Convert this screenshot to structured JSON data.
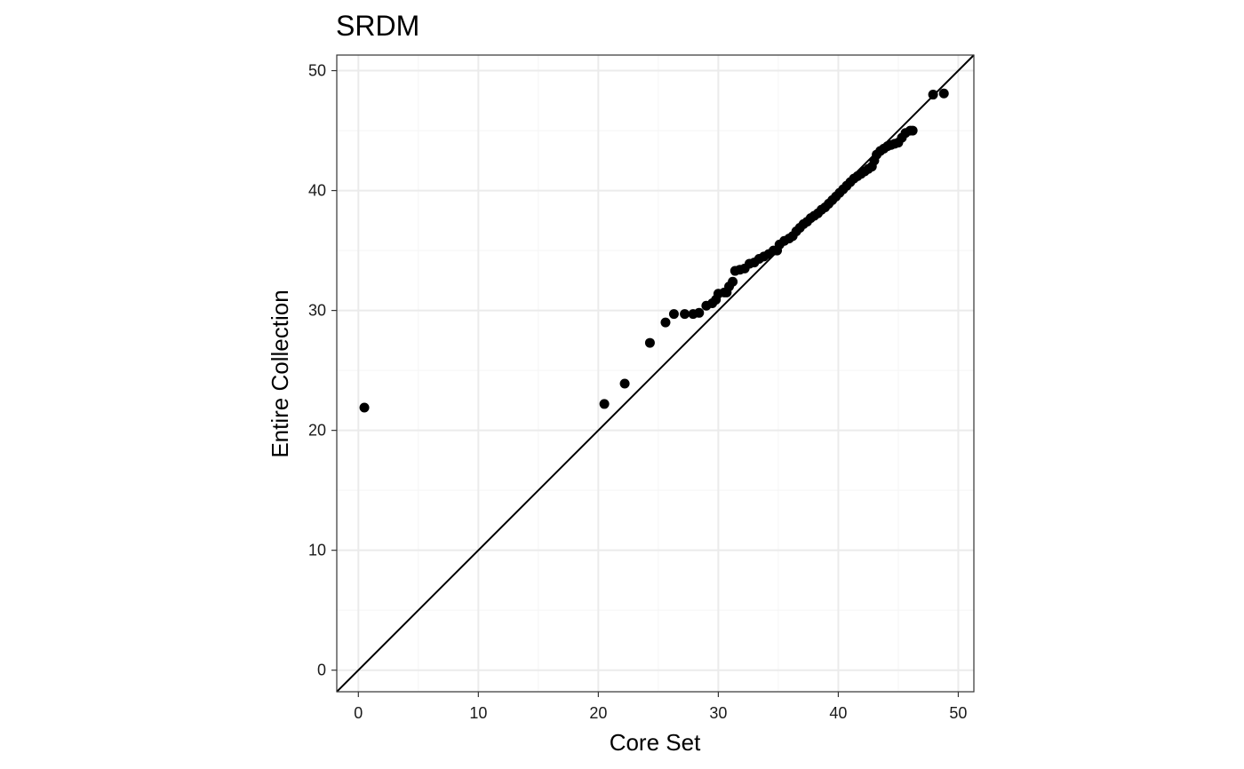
{
  "chart_data": {
    "type": "scatter",
    "title": "SRDM",
    "xlabel": "Core Set",
    "ylabel": "Entire Collection",
    "xlim": [
      -1.8,
      51.3
    ],
    "ylim": [
      -1.8,
      51.3
    ],
    "x_ticks": [
      0,
      10,
      20,
      30,
      40,
      50
    ],
    "y_ticks": [
      0,
      10,
      20,
      30,
      40,
      50
    ],
    "x_minor": [
      5,
      15,
      25,
      35,
      45
    ],
    "y_minor": [
      5,
      15,
      25,
      35,
      45
    ],
    "grid": true,
    "reference_line": {
      "type": "identity",
      "slope": 1,
      "intercept": 0
    },
    "colors": {
      "point": "#000000",
      "line": "#000000",
      "grid_major": "#ebebeb",
      "grid_minor": "#f5f5f5",
      "panel_border": "#333333",
      "background": "#ffffff"
    },
    "points": [
      [
        0.5,
        21.9
      ],
      [
        20.5,
        22.2
      ],
      [
        22.2,
        23.9
      ],
      [
        24.3,
        27.3
      ],
      [
        25.6,
        29.0
      ],
      [
        26.3,
        29.7
      ],
      [
        27.2,
        29.7
      ],
      [
        27.9,
        29.7
      ],
      [
        28.4,
        29.8
      ],
      [
        29.0,
        30.4
      ],
      [
        29.5,
        30.6
      ],
      [
        29.8,
        30.9
      ],
      [
        30.0,
        31.4
      ],
      [
        30.5,
        31.5
      ],
      [
        30.7,
        31.5
      ],
      [
        30.9,
        32.0
      ],
      [
        31.2,
        32.4
      ],
      [
        31.4,
        33.3
      ],
      [
        31.8,
        33.4
      ],
      [
        32.2,
        33.5
      ],
      [
        32.6,
        33.9
      ],
      [
        33.0,
        34.0
      ],
      [
        33.4,
        34.3
      ],
      [
        33.8,
        34.5
      ],
      [
        34.2,
        34.7
      ],
      [
        34.6,
        35.0
      ],
      [
        34.9,
        35.0
      ],
      [
        35.1,
        35.5
      ],
      [
        35.5,
        35.8
      ],
      [
        35.9,
        36.0
      ],
      [
        36.2,
        36.2
      ],
      [
        36.5,
        36.6
      ],
      [
        36.8,
        36.9
      ],
      [
        37.1,
        37.2
      ],
      [
        37.4,
        37.4
      ],
      [
        37.7,
        37.7
      ],
      [
        38.0,
        37.9
      ],
      [
        38.3,
        38.1
      ],
      [
        38.6,
        38.4
      ],
      [
        38.9,
        38.6
      ],
      [
        39.2,
        38.9
      ],
      [
        39.5,
        39.2
      ],
      [
        39.8,
        39.5
      ],
      [
        40.1,
        39.8
      ],
      [
        40.4,
        40.1
      ],
      [
        40.7,
        40.4
      ],
      [
        41.0,
        40.7
      ],
      [
        41.3,
        41.0
      ],
      [
        41.6,
        41.2
      ],
      [
        41.9,
        41.4
      ],
      [
        42.2,
        41.6
      ],
      [
        42.5,
        41.8
      ],
      [
        42.8,
        42.0
      ],
      [
        43.0,
        42.5
      ],
      [
        43.2,
        43.0
      ],
      [
        43.5,
        43.3
      ],
      [
        43.8,
        43.5
      ],
      [
        44.1,
        43.7
      ],
      [
        44.4,
        43.8
      ],
      [
        44.7,
        43.9
      ],
      [
        45.0,
        44.0
      ],
      [
        45.3,
        44.4
      ],
      [
        45.6,
        44.8
      ],
      [
        46.0,
        45.0
      ],
      [
        46.2,
        45.0
      ],
      [
        47.9,
        48.0
      ],
      [
        48.8,
        48.1
      ]
    ]
  }
}
